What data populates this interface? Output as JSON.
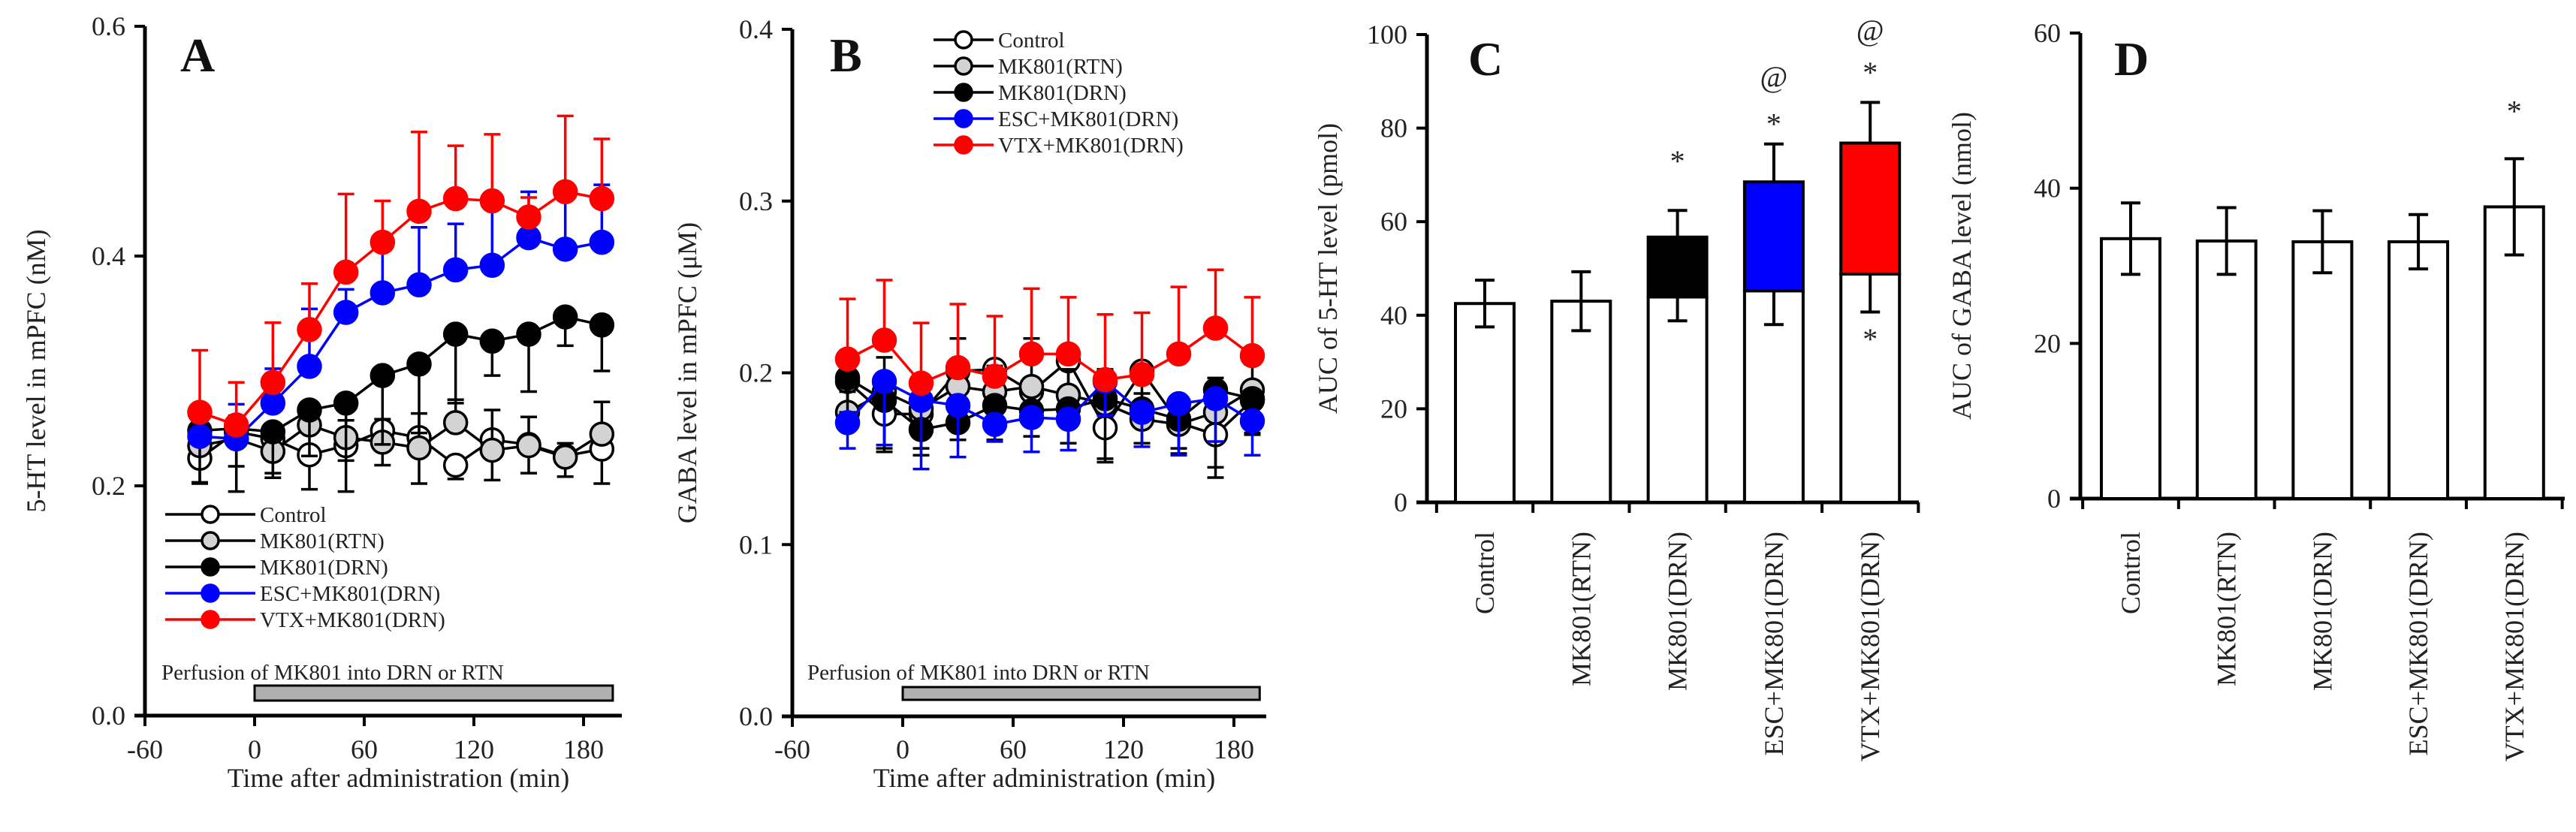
{
  "chart_data": [
    {
      "panel": "A",
      "type": "line",
      "title": "A",
      "xlabel": "Time after administration (min)",
      "ylabel": "5-HT level in mPFC (nM)",
      "xlim": [
        -60,
        195
      ],
      "ylim": [
        0,
        0.6
      ],
      "xticks": [
        "-60",
        "0",
        "60",
        "120",
        "180"
      ],
      "xtick_values": [
        -60,
        0,
        60,
        120,
        180
      ],
      "yticks": [
        "0.0",
        "0.2",
        "0.4",
        "0.6"
      ],
      "ytick_values": [
        0,
        0.2,
        0.4,
        0.6
      ],
      "annotation": "Perfusion of MK801 into DRN or RTN",
      "perfusion_range": [
        0,
        196
      ],
      "legend_position": "lower-left",
      "x": [
        -30,
        -10,
        10,
        30,
        50,
        70,
        90,
        110,
        130,
        150,
        170,
        190
      ],
      "series": [
        {
          "name": "Control",
          "fill": "#ffffff",
          "line": "#000000",
          "err_dir": "down",
          "values": [
            0.224,
            0.247,
            0.241,
            0.227,
            0.235,
            0.248,
            0.242,
            0.218,
            0.24,
            0.236,
            0.226,
            0.232
          ],
          "sem": [
            0.022,
            0.03,
            0.03,
            0.03,
            0.04,
            0.03,
            0.04,
            0.012,
            0.035,
            0.025,
            0.018,
            0.03
          ]
        },
        {
          "name": "MK801(RTN)",
          "fill": "#d3d3d3",
          "line": "#000000",
          "err_dir": "up",
          "values": [
            0.235,
            0.241,
            0.23,
            0.253,
            0.242,
            0.238,
            0.233,
            0.255,
            0.231,
            0.235,
            0.225,
            0.245
          ],
          "sem": [
            0.012,
            0.02,
            0.015,
            0.015,
            0.015,
            0.02,
            0.03,
            0.02,
            0.035,
            0.025,
            0.012,
            0.028
          ]
        },
        {
          "name": "MK801(DRN)",
          "fill": "#000000",
          "line": "#000000",
          "err_dir": "down",
          "values": [
            0.248,
            0.25,
            0.247,
            0.266,
            0.272,
            0.296,
            0.306,
            0.332,
            0.326,
            0.332,
            0.347,
            0.34
          ],
          "sem": [
            0.045,
            0.055,
            0.04,
            0.04,
            0.05,
            0.06,
            0.06,
            0.06,
            0.03,
            0.05,
            0.025,
            0.04
          ]
        },
        {
          "name": "ESC+MK801(DRN)",
          "fill": "#0000ff",
          "line": "#0000ff",
          "err_dir": "up",
          "values": [
            0.243,
            0.241,
            0.272,
            0.304,
            0.351,
            0.368,
            0.375,
            0.388,
            0.392,
            0.416,
            0.406,
            0.412
          ],
          "sem": [
            0.013,
            0.03,
            0.03,
            0.05,
            0.02,
            0.05,
            0.05,
            0.04,
            0.06,
            0.04,
            0.055,
            0.05
          ]
        },
        {
          "name": "VTX+MK801(DRN)",
          "fill": "#ff0000",
          "line": "#ff0000",
          "err_dir": "up",
          "values": [
            0.264,
            0.253,
            0.29,
            0.336,
            0.386,
            0.412,
            0.439,
            0.45,
            0.448,
            0.434,
            0.456,
            0.45
          ],
          "sem": [
            0.054,
            0.037,
            0.052,
            0.04,
            0.068,
            0.036,
            0.069,
            0.046,
            0.058,
            0.017,
            0.066,
            0.052
          ]
        }
      ]
    },
    {
      "panel": "B",
      "type": "line",
      "title": "B",
      "xlabel": "Time after administration (min)",
      "ylabel": "GABA level in mPFC (μM)",
      "xlim": [
        -60,
        198
      ],
      "ylim": [
        0,
        0.4
      ],
      "xticks": [
        "-60",
        "0",
        "60",
        "120",
        "180"
      ],
      "xtick_values": [
        -60,
        0,
        60,
        120,
        180
      ],
      "yticks": [
        "0.0",
        "0.1",
        "0.2",
        "0.3",
        "0.4"
      ],
      "ytick_values": [
        0,
        0.1,
        0.2,
        0.3,
        0.4
      ],
      "annotation": "Perfusion of MK801 into DRN or RTN",
      "perfusion_range": [
        0,
        194
      ],
      "legend_position": "top",
      "x": [
        -30,
        -10,
        10,
        30,
        50,
        70,
        90,
        110,
        130,
        150,
        170,
        190
      ],
      "series": [
        {
          "name": "Control",
          "fill": "#ffffff",
          "line": "#000000",
          "err_dir": "down",
          "values": [
            0.195,
            0.176,
            0.176,
            0.201,
            0.202,
            0.189,
            0.207,
            0.168,
            0.201,
            0.171,
            0.164,
            0.184
          ],
          "sem": [
            0.015,
            0.02,
            0.02,
            0.015,
            0.02,
            0.02,
            0.015,
            0.02,
            0.02,
            0.015,
            0.025,
            0.02
          ]
        },
        {
          "name": "MK801(RTN)",
          "fill": "#d3d3d3",
          "line": "#000000",
          "err_dir": "up",
          "values": [
            0.177,
            0.189,
            0.179,
            0.192,
            0.189,
            0.192,
            0.187,
            0.182,
            0.173,
            0.17,
            0.177,
            0.19
          ],
          "sem": [
            0.012,
            0.02,
            0.015,
            0.028,
            0.015,
            0.028,
            0.015,
            0.02,
            0.015,
            0.015,
            0.02,
            0.015
          ]
        },
        {
          "name": "MK801(DRN)",
          "fill": "#000000",
          "line": "#000000",
          "err_dir": "down",
          "values": [
            0.197,
            0.184,
            0.167,
            0.171,
            0.181,
            0.178,
            0.179,
            0.185,
            0.179,
            0.173,
            0.19,
            0.185
          ],
          "sem": [
            0.02,
            0.03,
            0.015,
            0.01,
            0.02,
            0.015,
            0.02,
            0.035,
            0.02,
            0.02,
            0.045,
            0.02
          ]
        },
        {
          "name": "ESC+MK801(DRN)",
          "fill": "#0000ff",
          "line": "#0000ff",
          "err_dir": "down",
          "values": [
            0.171,
            0.195,
            0.184,
            0.181,
            0.17,
            0.174,
            0.173,
            0.195,
            0.177,
            0.182,
            0.185,
            0.172
          ],
          "sem": [
            0.015,
            0.037,
            0.04,
            0.03,
            0.01,
            0.02,
            0.018,
            0.02,
            0.02,
            0.03,
            0.025,
            0.02
          ]
        },
        {
          "name": "VTX+MK801(DRN)",
          "fill": "#ff0000",
          "line": "#ff0000",
          "err_dir": "up",
          "values": [
            0.208,
            0.219,
            0.194,
            0.203,
            0.198,
            0.211,
            0.211,
            0.196,
            0.199,
            0.211,
            0.226,
            0.21
          ],
          "sem": [
            0.035,
            0.035,
            0.035,
            0.037,
            0.035,
            0.038,
            0.033,
            0.038,
            0.036,
            0.039,
            0.034,
            0.034
          ]
        }
      ]
    },
    {
      "panel": "C",
      "type": "bar",
      "title": "C",
      "xlabel": "",
      "ylabel": "AUC of 5-HT level (pmol)",
      "ylim": [
        0,
        100
      ],
      "yticks": [
        "0",
        "20",
        "40",
        "60",
        "80",
        "100"
      ],
      "ytick_values": [
        0,
        20,
        40,
        60,
        80,
        100
      ],
      "categories": [
        "Control",
        "MK801(RTN)",
        "MK801(DRN)",
        "ESC+MK801(DRN)",
        "VTX+MK801(DRN)"
      ],
      "total": [
        42.5,
        43.0,
        56.7,
        68.5,
        76.8
      ],
      "total_err": [
        5.0,
        6.3,
        5.7,
        8.1,
        8.7
      ],
      "base": [
        42.5,
        43.0,
        43.9,
        45.2,
        48.8
      ],
      "base_err": [
        6.5,
        7.3,
        5.1,
        7.2,
        8.1
      ],
      "colors": [
        "#ffffff",
        "#ffffff",
        "#000000",
        "#0000ff",
        "#ff0000"
      ],
      "annotations": [
        {
          "category": 2,
          "text": "*",
          "at": 73
        },
        {
          "category": 3,
          "text": "*",
          "at": 81
        },
        {
          "category": 3,
          "text": "@",
          "at": 91
        },
        {
          "category": 4,
          "text": "*",
          "at": 92
        },
        {
          "category": 4,
          "text": "@",
          "at": 101
        },
        {
          "category": 4,
          "text": "*",
          "at": 35
        }
      ]
    },
    {
      "panel": "D",
      "type": "bar",
      "title": "D",
      "xlabel": "",
      "ylabel": "AUC of GABA level (nmol)",
      "ylim": [
        0,
        60
      ],
      "yticks": [
        "0",
        "20",
        "40",
        "60"
      ],
      "ytick_values": [
        0,
        20,
        40,
        60
      ],
      "categories": [
        "Control",
        "MK801(RTN)",
        "MK801(DRN)",
        "ESC+MK801(DRN)",
        "VTX+MK801(DRN)"
      ],
      "total": [
        33.5,
        33.2,
        33.1,
        33.1,
        37.6
      ],
      "total_err": [
        4.6,
        4.3,
        4.0,
        3.5,
        6.2
      ],
      "base": [
        33.5,
        33.2,
        33.1,
        33.1,
        37.6
      ],
      "base_err": [
        4.6,
        4.3,
        4.0,
        3.5,
        6.2
      ],
      "colors": [
        "#ffffff",
        "#ffffff",
        "#ffffff",
        "#ffffff",
        "#ffffff"
      ],
      "annotations": [
        {
          "category": 4,
          "text": "*",
          "at": 50
        }
      ]
    }
  ]
}
